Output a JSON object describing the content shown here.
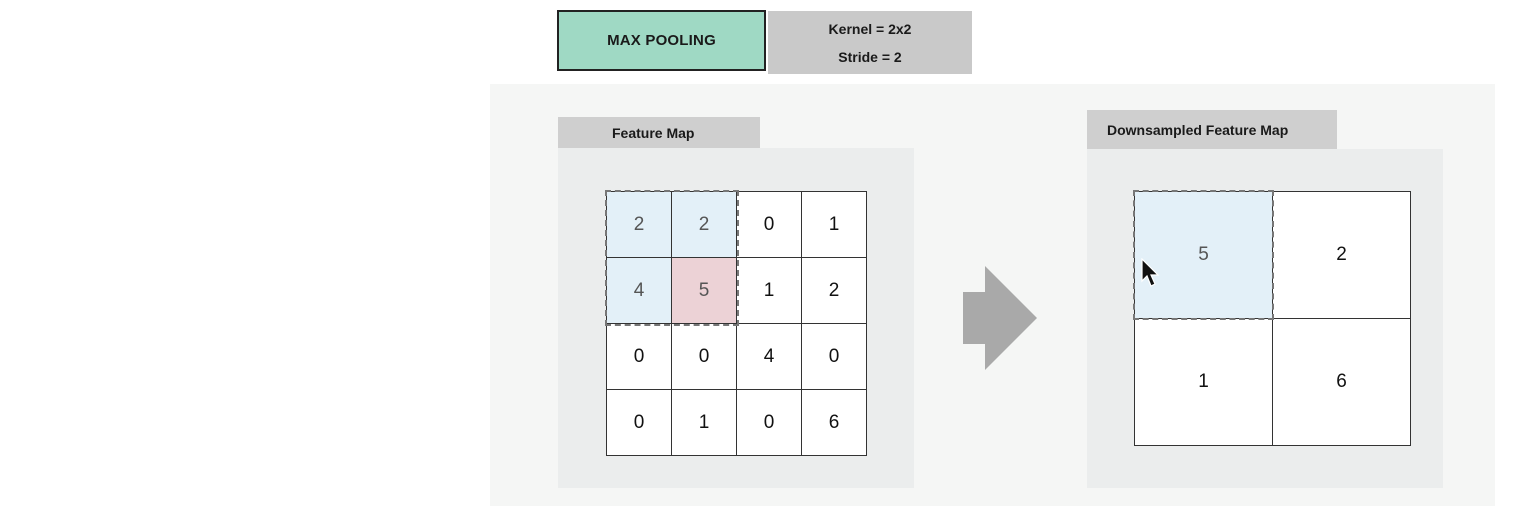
{
  "header": {
    "title": "MAX POOLING",
    "kernel": "Kernel = 2x2",
    "stride": "Stride = 2"
  },
  "feature_map": {
    "label": "Feature Map",
    "rows": [
      [
        "2",
        "2",
        "0",
        "1"
      ],
      [
        "4",
        "5",
        "1",
        "2"
      ],
      [
        "0",
        "0",
        "4",
        "0"
      ],
      [
        "0",
        "1",
        "0",
        "6"
      ]
    ]
  },
  "downsampled": {
    "label": "Downsampled Feature Map",
    "rows": [
      [
        "5",
        "2"
      ],
      [
        "1",
        "6"
      ]
    ]
  },
  "colors": {
    "title_bg": "#9fd9c4",
    "window_highlight": "#e3f0f8",
    "max_highlight": "#ecd2d6",
    "arrow": "#a9a9a9"
  },
  "icons": {
    "arrow": "right-arrow-icon",
    "cursor": "mouse-cursor-icon"
  }
}
